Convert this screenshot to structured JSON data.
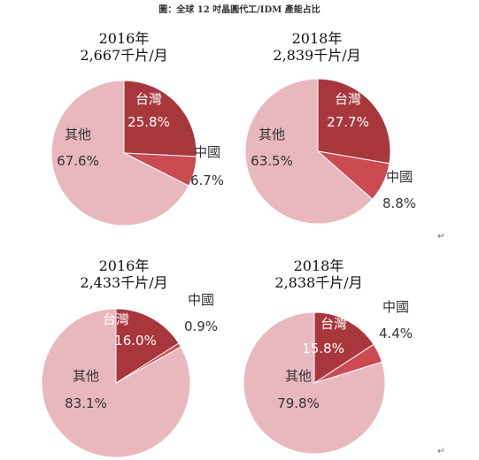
{
  "figure": {
    "title": "圖：全球 12 吋晶圓代工/IDM 產能占比",
    "return_mark": "↵"
  },
  "colors": {
    "taiwan": "#a8373d",
    "china": "#cc4b52",
    "others": "#e9b7be",
    "label_light": "#ffffff",
    "label_dark": "#333333"
  },
  "chart_data": [
    {
      "type": "pie",
      "title_line1": "2016年",
      "title_line2": "2,667千片/月",
      "slices": [
        {
          "name": "台灣",
          "value": 25.8,
          "label": "25.8%"
        },
        {
          "name": "中國",
          "value": 6.7,
          "label": "6.7%"
        },
        {
          "name": "其他",
          "value": 67.6,
          "label": "67.6%"
        }
      ]
    },
    {
      "type": "pie",
      "title_line1": "2018年",
      "title_line2": "2,839千片/月",
      "slices": [
        {
          "name": "台灣",
          "value": 27.7,
          "label": "27.7%"
        },
        {
          "name": "中國",
          "value": 8.8,
          "label": "8.8%"
        },
        {
          "name": "其他",
          "value": 63.5,
          "label": "63.5%"
        }
      ]
    },
    {
      "type": "pie",
      "title_line1": "2016年",
      "title_line2": "2,433千片/月",
      "slices": [
        {
          "name": "台灣",
          "value": 16.0,
          "label": "16.0%"
        },
        {
          "name": "中國",
          "value": 0.9,
          "label": "0.9%"
        },
        {
          "name": "其他",
          "value": 83.1,
          "label": "83.1%"
        }
      ]
    },
    {
      "type": "pie",
      "title_line1": "2018年",
      "title_line2": "2,838千片/月",
      "slices": [
        {
          "name": "台灣",
          "value": 15.8,
          "label": "15.8%"
        },
        {
          "name": "中國",
          "value": 4.4,
          "label": "4.4%"
        },
        {
          "name": "其他",
          "value": 79.8,
          "label": "79.8%"
        }
      ]
    }
  ]
}
